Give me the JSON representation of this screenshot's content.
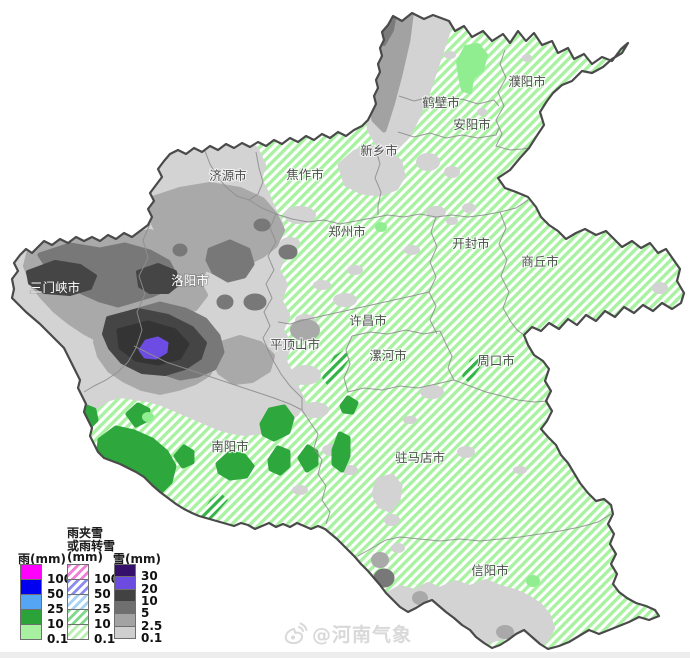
{
  "map": {
    "region_name": "河南",
    "cities": [
      "濮阳市",
      "鹤壁市",
      "安阳市",
      "新乡市",
      "济源市",
      "焦作市",
      "郑州市",
      "开封市",
      "商丘市",
      "三门峡市",
      "洛阳市",
      "许昌市",
      "平顶山市",
      "漯河市",
      "周口市",
      "南阳市",
      "驻马店市",
      "信阳市"
    ]
  },
  "legend": {
    "rain": {
      "title": "雨(mm)",
      "ticks": [
        "100",
        "50",
        "25",
        "10",
        "0.1"
      ],
      "colors": [
        "#FF00FF",
        "#0000F0",
        "#55A5F5",
        "#2CA339",
        "#A7F1A0"
      ],
      "hatched": false
    },
    "sleet": {
      "title_lines": [
        "雨夹雪",
        "或雨转雪",
        "(mm)"
      ],
      "ticks": [
        "100",
        "50",
        "25",
        "10",
        "0.1"
      ],
      "colors": [
        "#F07ED7",
        "#8C8CF0",
        "#A8D2F5",
        "#7FD98A",
        "#B9EFB0"
      ],
      "hatched": true
    },
    "snow": {
      "title": "雪(mm)",
      "ticks": [
        "30",
        "20",
        "10",
        "5",
        "2.5",
        "0.1"
      ],
      "colors": [
        "#35106B",
        "#6B4BE0",
        "#424242",
        "#6F6F6F",
        "#A3A3A3",
        "#CFCFCF"
      ],
      "hatched": false
    }
  },
  "watermark": {
    "handle": "@河南气象",
    "icon": "weibo-icon"
  },
  "colors": {
    "sleet_hatch_stripe": "#A9F2A2",
    "sleet_hatch_dark": "#35B24A",
    "rain_solid": "#2EA83C",
    "rain_light": "#90EE90",
    "snow_light": "#D3D3D3",
    "snow_25": "#A9A9A9",
    "snow_5": "#787878",
    "snow_10": "#454545",
    "snow_20": "#343434",
    "snow_30_purple": "#6C4CE2",
    "province_outline": "#4A4A4A",
    "city_border": "#8F8F8F"
  }
}
